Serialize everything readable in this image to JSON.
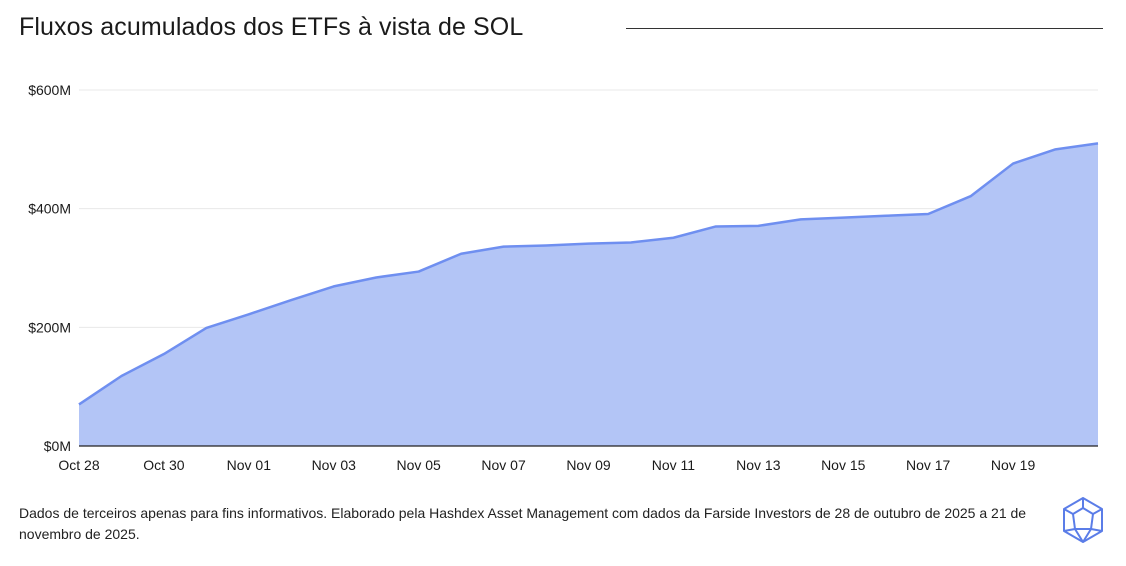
{
  "chart_data": {
    "type": "area",
    "title": "Fluxos acumulados dos ETFs à vista de SOL",
    "xlabel": "",
    "ylabel": "",
    "x": [
      "2025-10-28",
      "2025-10-29",
      "2025-10-30",
      "2025-10-31",
      "2025-11-01",
      "2025-11-02",
      "2025-11-03",
      "2025-11-04",
      "2025-11-05",
      "2025-11-06",
      "2025-11-07",
      "2025-11-08",
      "2025-11-09",
      "2025-11-10",
      "2025-11-11",
      "2025-11-12",
      "2025-11-13",
      "2025-11-14",
      "2025-11-15",
      "2025-11-16",
      "2025-11-17",
      "2025-11-18",
      "2025-11-19",
      "2025-11-20",
      "2025-11-21"
    ],
    "series": [
      {
        "values": [
          70,
          118,
          155,
          199,
          222,
          246,
          269,
          284,
          294,
          324,
          336,
          338,
          341,
          343,
          351,
          370,
          371,
          382,
          385,
          388,
          391,
          421,
          476,
          500,
          510
        ]
      }
    ],
    "ylim": [
      0,
      600
    ],
    "yticks": [
      0,
      200,
      400,
      600
    ],
    "ytick_labels": [
      "$0M",
      "$200M",
      "$400M",
      "$600M"
    ],
    "xtick_labels": [
      "Oct 28",
      "Oct 30",
      "Nov 01",
      "Nov 03",
      "Nov 05",
      "Nov 07",
      "Nov 09",
      "Nov 11",
      "Nov 13",
      "Nov 15",
      "Nov 17",
      "Nov 19"
    ],
    "grid": true,
    "colors": {
      "line": "#6f8ff0",
      "fill": "#b3c5f6",
      "grid": "#e8e8e8",
      "axis": "#222222"
    }
  },
  "footnote": "Dados de terceiros apenas para fins informativos. Elaborado pela Hashdex Asset Management com dados da Farside Investors de 28 de outubro de 2025 a 21 de novembro de 2025.",
  "logo": {
    "icon": "hashdex-logo-icon",
    "color": "#5b7de8"
  }
}
